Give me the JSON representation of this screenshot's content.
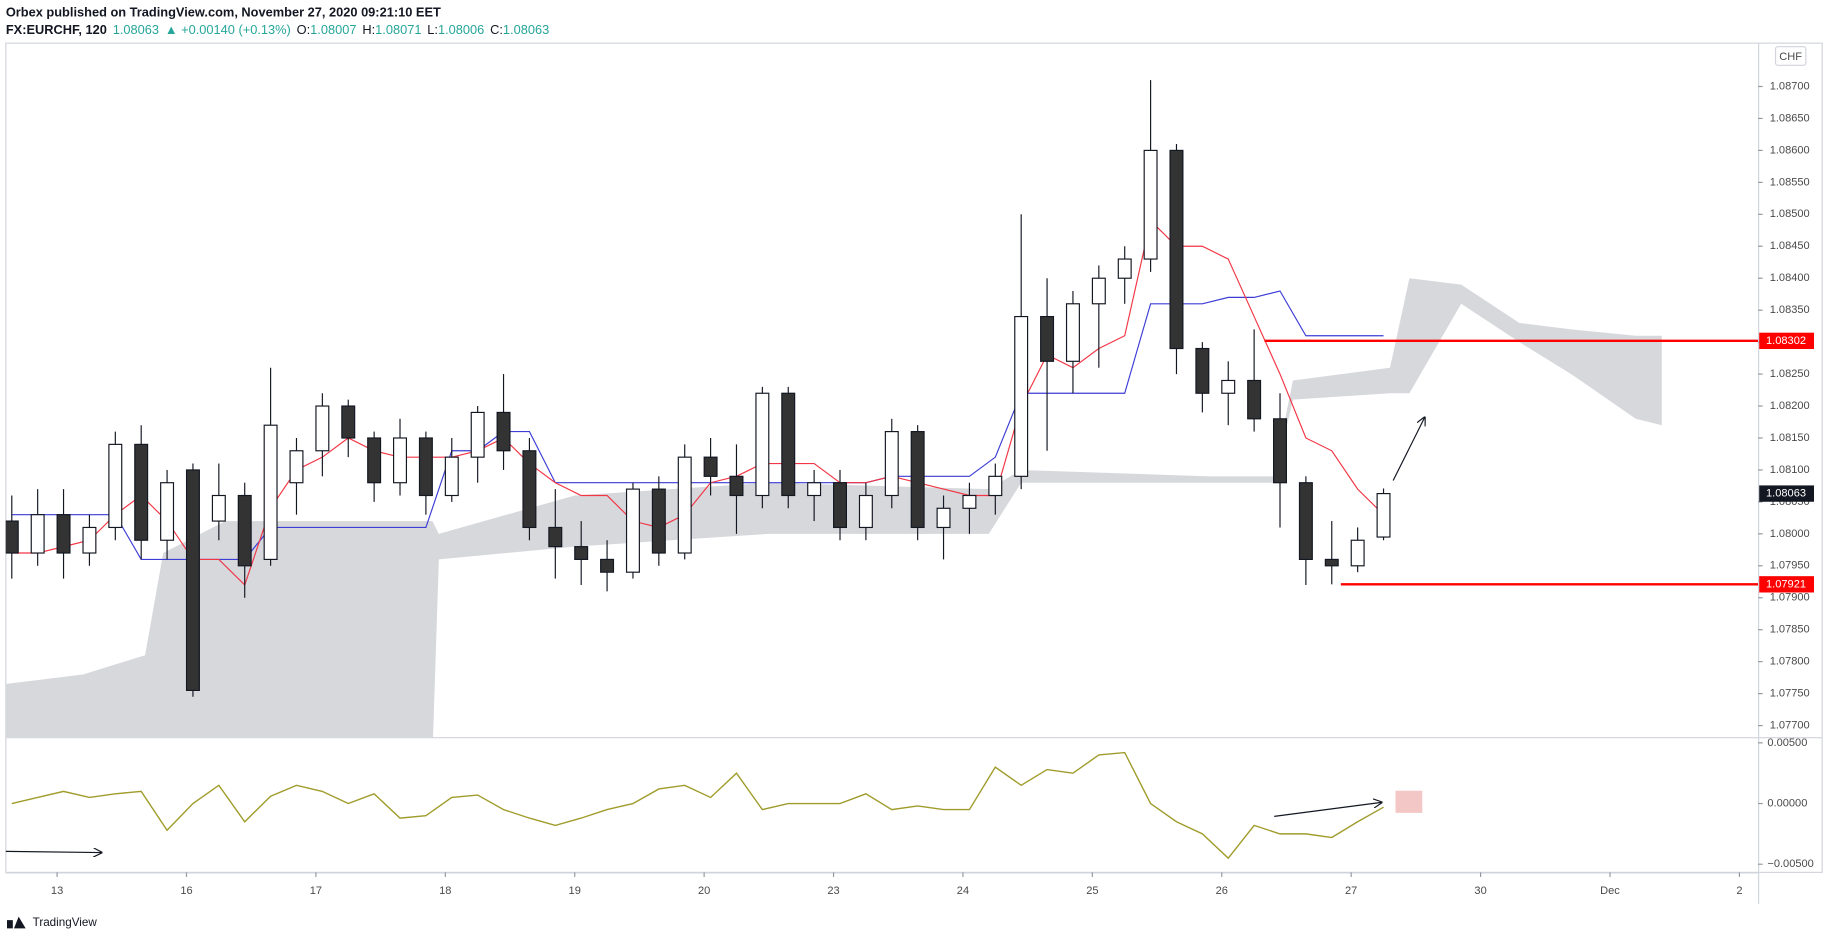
{
  "header": {
    "publisher": "Orbex published on TradingView.com, November 27, 2020 09:21:10 EET",
    "symbol": "FX:EURCHF, 120",
    "last": "1.08063",
    "change": "▲ +0.00140 (+0.13%)",
    "o_label": "O:",
    "o": "1.08007",
    "h_label": "H:",
    "h": "1.08071",
    "l_label": "L:",
    "l": "1.08006",
    "c_label": "C:",
    "c": "1.08063",
    "currency": "CHF"
  },
  "footer": {
    "brand": "TradingView"
  },
  "chart_data": [
    {
      "type": "candlestick",
      "x": [
        -0.35,
        -0.15,
        0.05,
        0.25,
        0.45,
        0.65,
        0.85,
        1.05,
        1.25,
        1.45,
        1.65,
        1.85,
        2.05,
        2.25,
        2.45,
        2.65,
        2.85,
        3.05,
        3.25,
        3.45,
        3.65,
        3.85,
        4.05,
        4.25,
        4.45,
        4.65,
        4.85,
        5.05,
        5.25,
        5.45,
        5.65,
        5.85,
        6.05,
        6.25,
        6.45,
        6.65,
        6.85,
        7.05,
        7.25,
        7.45,
        7.65,
        7.85,
        8.05,
        8.25,
        8.45,
        8.65,
        8.85,
        9.05,
        9.25,
        9.45,
        9.65,
        9.85,
        10.05,
        10.25
      ],
      "open": [
        1.0802,
        1.0797,
        1.0803,
        1.0797,
        1.0801,
        1.0814,
        1.0799,
        1.081,
        1.0802,
        1.0806,
        1.0796,
        1.0808,
        1.0813,
        1.082,
        1.0815,
        1.0808,
        1.0815,
        1.0806,
        1.0812,
        1.0819,
        1.0813,
        1.0801,
        1.0798,
        1.0796,
        1.0794,
        1.0807,
        1.0797,
        1.0812,
        1.0809,
        1.0806,
        1.0822,
        1.0806,
        1.0808,
        1.0801,
        1.0806,
        1.0816,
        1.0801,
        1.0804,
        1.0806,
        1.0809,
        1.0834,
        1.0827,
        1.0836,
        1.084,
        1.0843,
        1.086,
        1.0829,
        1.0822,
        1.0824,
        1.0818,
        1.0808,
        1.0796,
        1.0795,
        1.07995
      ],
      "high": [
        1.0806,
        1.0807,
        1.0807,
        1.0803,
        1.0816,
        1.0817,
        1.081,
        1.0811,
        1.0811,
        1.0808,
        1.0826,
        1.0815,
        1.0822,
        1.0821,
        1.0816,
        1.0818,
        1.0816,
        1.0815,
        1.082,
        1.0825,
        1.0815,
        1.0807,
        1.0802,
        1.0799,
        1.0808,
        1.0809,
        1.0814,
        1.0815,
        1.0814,
        1.0823,
        1.0823,
        1.081,
        1.081,
        1.0808,
        1.0818,
        1.0817,
        1.0806,
        1.0808,
        1.0811,
        1.085,
        1.084,
        1.0838,
        1.0842,
        1.0845,
        1.0871,
        1.0861,
        1.083,
        1.0827,
        1.0832,
        1.0822,
        1.0809,
        1.0802,
        1.0801,
        1.08071
      ],
      "low": [
        1.0793,
        1.0795,
        1.0793,
        1.0795,
        1.0799,
        1.0796,
        1.0796,
        1.07745,
        1.0799,
        1.079,
        1.0795,
        1.0803,
        1.0809,
        1.0812,
        1.0805,
        1.0806,
        1.0803,
        1.0805,
        1.0808,
        1.081,
        1.0799,
        1.0793,
        1.0792,
        1.0791,
        1.0793,
        1.0795,
        1.0796,
        1.0806,
        1.08,
        1.0804,
        1.0804,
        1.0802,
        1.0799,
        1.0799,
        1.0804,
        1.0799,
        1.0796,
        1.08,
        1.0803,
        1.0807,
        1.0813,
        1.0822,
        1.0826,
        1.0836,
        1.0841,
        1.0825,
        1.0819,
        1.0817,
        1.0816,
        1.0801,
        1.0792,
        1.07921,
        1.0794,
        1.0799
      ],
      "close": [
        1.0797,
        1.0803,
        1.0797,
        1.0801,
        1.0814,
        1.0799,
        1.0808,
        1.07755,
        1.0806,
        1.0795,
        1.0817,
        1.0813,
        1.082,
        1.0815,
        1.0808,
        1.0815,
        1.0806,
        1.0812,
        1.0819,
        1.0813,
        1.0801,
        1.0798,
        1.0796,
        1.0794,
        1.0807,
        1.0797,
        1.0812,
        1.0809,
        1.0806,
        1.0822,
        1.0806,
        1.0808,
        1.0801,
        1.0806,
        1.0816,
        1.0801,
        1.0804,
        1.0806,
        1.0809,
        1.0834,
        1.0827,
        1.0836,
        1.084,
        1.0843,
        1.086,
        1.0829,
        1.0822,
        1.0824,
        1.0818,
        1.0808,
        1.0796,
        1.0795,
        1.0799,
        1.08063
      ],
      "up_color": "#ffffff",
      "down_color": "#333333",
      "outline": "#131722",
      "conversion_line": {
        "color": "#f23645",
        "values": [
          1.0797,
          1.0797,
          1.0798,
          1.0799,
          1.0803,
          1.0806,
          1.0802,
          1.0796,
          1.0796,
          1.0792,
          1.0804,
          1.081,
          1.0812,
          1.0815,
          1.0813,
          1.0812,
          1.0812,
          1.0812,
          1.0813,
          1.0815,
          1.0811,
          1.0808,
          1.0806,
          1.0806,
          1.0802,
          1.0801,
          1.0803,
          1.0808,
          1.0809,
          1.0811,
          1.0811,
          1.0811,
          1.0808,
          1.0808,
          1.0809,
          1.0808,
          1.0807,
          1.0806,
          1.0806,
          1.082,
          1.0828,
          1.0826,
          1.0829,
          1.0831,
          1.0849,
          1.0845,
          1.0845,
          1.0843,
          1.0834,
          1.0825,
          1.0815,
          1.0813,
          1.0807,
          1.0803
        ]
      },
      "base_line": {
        "color": "#3d3dd6",
        "values": [
          1.0803,
          1.0803,
          1.0803,
          1.0803,
          1.0803,
          1.0796,
          1.0796,
          1.0796,
          1.0796,
          1.0796,
          1.0801,
          1.0801,
          1.0801,
          1.0801,
          1.0801,
          1.0801,
          1.0801,
          1.0813,
          1.0813,
          1.0816,
          1.0816,
          1.0808,
          1.0808,
          1.0808,
          1.0808,
          1.0808,
          1.0808,
          1.0808,
          1.0808,
          1.0808,
          1.0808,
          1.0808,
          1.0808,
          1.0808,
          1.0809,
          1.0809,
          1.0809,
          1.0809,
          1.0812,
          1.0822,
          1.0822,
          1.0822,
          1.0822,
          1.0822,
          1.0836,
          1.0836,
          1.0836,
          1.0837,
          1.0837,
          1.0838,
          1.0831,
          1.0831,
          1.0831,
          1.0831
        ]
      },
      "cloud": {
        "color": "#d6d8dc",
        "x": [
          -0.4,
          0.2,
          0.68,
          0.82,
          1.3,
          2.9,
          2.95,
          4.0,
          5.5,
          7.2,
          7.45,
          8.9,
          9.4,
          9.55,
          10.3,
          10.45,
          10.85,
          11.3,
          11.7,
          12.2,
          12.4
        ],
        "top": [
          1.07765,
          1.0778,
          1.0781,
          1.0797,
          1.0802,
          1.0802,
          1.08,
          1.0806,
          1.0808,
          1.0807,
          1.081,
          1.0809,
          1.0809,
          1.0824,
          1.0826,
          1.084,
          1.0839,
          1.0833,
          1.0832,
          1.0831,
          1.0831
        ],
        "bottom": [
          1.0765,
          1.0765,
          1.0765,
          1.0765,
          1.0765,
          1.0765,
          1.0796,
          1.0798,
          1.08,
          1.08,
          1.0808,
          1.0808,
          1.0808,
          1.0821,
          1.0822,
          1.0822,
          1.0836,
          1.083,
          1.0825,
          1.0818,
          1.0817
        ]
      },
      "levels": [
        {
          "value": 1.08302,
          "label": "1.08302",
          "x_start": 9.33,
          "color": "#ff0000"
        },
        {
          "value": 1.07921,
          "label": "1.07921",
          "x_start": 9.92,
          "color": "#ff0000"
        }
      ],
      "xlim": [
        -0.396,
        13.144
      ],
      "ylim": [
        1.07682,
        1.08766
      ],
      "yticks": [
        {
          "value": 1.077,
          "label": "1.07700"
        },
        {
          "value": 1.0775,
          "label": "1.07750"
        },
        {
          "value": 1.078,
          "label": "1.07800"
        },
        {
          "value": 1.0785,
          "label": "1.07850"
        },
        {
          "value": 1.079,
          "label": "1.07900"
        },
        {
          "value": 1.0795,
          "label": "1.07950"
        },
        {
          "value": 1.08,
          "label": "1.08000"
        },
        {
          "value": 1.0805,
          "label": "1.08050"
        },
        {
          "value": 1.081,
          "label": "1.08100"
        },
        {
          "value": 1.0815,
          "label": "1.08150"
        },
        {
          "value": 1.082,
          "label": "1.08200"
        },
        {
          "value": 1.0825,
          "label": "1.08250"
        },
        {
          "value": 1.083,
          "label": "1.08300"
        },
        {
          "value": 1.0835,
          "label": "1.08350"
        },
        {
          "value": 1.084,
          "label": "1.08400"
        },
        {
          "value": 1.0845,
          "label": "1.08450"
        },
        {
          "value": 1.085,
          "label": "1.08500"
        },
        {
          "value": 1.0855,
          "label": "1.08550"
        },
        {
          "value": 1.086,
          "label": "1.08600"
        },
        {
          "value": 1.0865,
          "label": "1.08650"
        },
        {
          "value": 1.087,
          "label": "1.08700"
        }
      ]
    },
    {
      "type": "line",
      "x": [
        -0.35,
        -0.15,
        0.05,
        0.25,
        0.45,
        0.65,
        0.85,
        1.05,
        1.25,
        1.45,
        1.65,
        1.85,
        2.05,
        2.25,
        2.45,
        2.65,
        2.85,
        3.05,
        3.25,
        3.45,
        3.65,
        3.85,
        4.05,
        4.25,
        4.45,
        4.65,
        4.85,
        5.05,
        5.25,
        5.45,
        5.65,
        5.85,
        6.05,
        6.25,
        6.45,
        6.65,
        6.85,
        7.05,
        7.25,
        7.45,
        7.65,
        7.85,
        8.05,
        8.25,
        8.45,
        8.65,
        8.85,
        9.05,
        9.25,
        9.45,
        9.65,
        9.85,
        10.05,
        10.25
      ],
      "values": [
        0,
        0.0005,
        0.001,
        0.0005,
        0.0008,
        0.001,
        -0.0022,
        0,
        0.0015,
        -0.0015,
        0.0006,
        0.0015,
        0.001,
        0,
        0.0008,
        -0.0012,
        -0.001,
        0.0005,
        0.0007,
        -0.0005,
        -0.0012,
        -0.0018,
        -0.0012,
        -0.0005,
        0,
        0.0012,
        0.0015,
        0.0005,
        0.0025,
        -0.0005,
        0,
        0,
        0,
        0.0008,
        -0.0005,
        -0.0002,
        -0.0005,
        -0.0005,
        0.003,
        0.0015,
        0.0028,
        0.0025,
        0.004,
        0.0042,
        0,
        -0.0015,
        -0.0025,
        -0.0045,
        -0.0018,
        -0.0025,
        -0.0025,
        -0.0028,
        -0.0015,
        -0.0003
      ],
      "color": "#a09c2c",
      "xlim": [
        -0.396,
        13.144
      ],
      "ylim": [
        -0.00567,
        0.00538
      ],
      "yticks": [
        {
          "value": 0.005,
          "label": "0.00500"
        },
        {
          "value": 0,
          "label": "0.00000"
        },
        {
          "value": -0.005,
          "label": "−0.00500"
        }
      ],
      "xticks": [
        {
          "value": 0,
          "label": "13"
        },
        {
          "value": 1,
          "label": "16"
        },
        {
          "value": 2,
          "label": "17"
        },
        {
          "value": 3,
          "label": "18"
        },
        {
          "value": 4,
          "label": "19"
        },
        {
          "value": 5,
          "label": "20"
        },
        {
          "value": 6,
          "label": "23"
        },
        {
          "value": 7,
          "label": "24"
        },
        {
          "value": 8,
          "label": "25"
        },
        {
          "value": 9,
          "label": "26"
        },
        {
          "value": 10,
          "label": "27"
        },
        {
          "value": 11,
          "label": "30"
        },
        {
          "value": 12,
          "label": "Dec"
        },
        {
          "value": 13,
          "label": "2"
        }
      ]
    }
  ]
}
